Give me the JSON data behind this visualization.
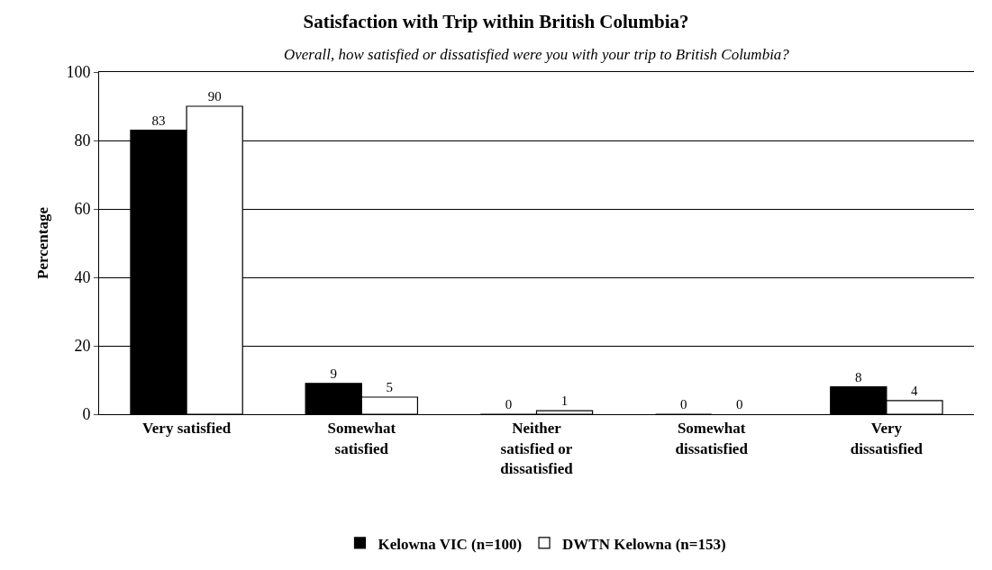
{
  "chart_data": {
    "type": "bar",
    "title": "Satisfaction with Trip within British Columbia?",
    "subtitle": "Overall, how satisfied or dissatisfied were you with your trip to British Columbia?",
    "ylabel": "Percentage",
    "categories": [
      "Very satisfied",
      "Somewhat satisfied",
      "Neither satisfied or dissatisfied",
      "Somewhat dissatisfied",
      "Very dissatisfied"
    ],
    "series": [
      {
        "name": "Kelowna VIC (n=100)",
        "color": "#000000",
        "values": [
          83,
          9,
          0,
          0,
          8
        ]
      },
      {
        "name": "DWTN Kelowna (n=153)",
        "color": "#ffffff",
        "values": [
          90,
          5,
          1,
          0,
          4
        ]
      }
    ],
    "ylim": [
      0,
      100
    ],
    "yticks": [
      0,
      20,
      40,
      60,
      80,
      100
    ],
    "grid": "y",
    "legend": "bottom",
    "data_labels": true
  }
}
